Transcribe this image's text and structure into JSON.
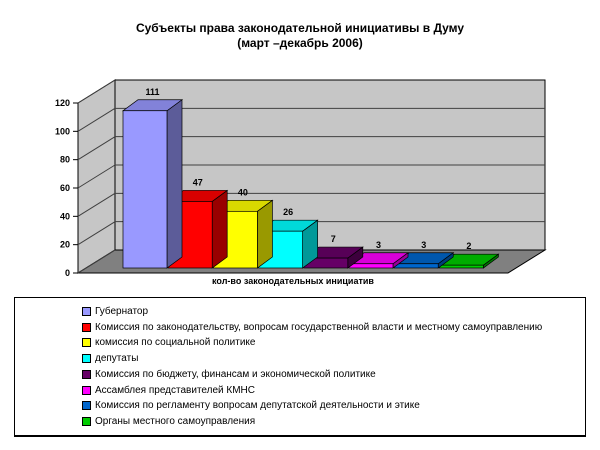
{
  "title": {
    "line1": "Субъекты права законодательной инициативы в Думу",
    "line2": "(март –декабрь 2006)"
  },
  "chart_data": {
    "type": "bar",
    "projection": "3d",
    "title": "Субъекты права законодательной инициативы в Думу (март –декабрь 2006)",
    "xlabel": "кол-во законодательных инициатив",
    "ylabel": "",
    "ylim": [
      0,
      120
    ],
    "y_ticks": [
      0,
      20,
      40,
      60,
      80,
      100,
      120
    ],
    "grid": true,
    "legend_position": "bottom",
    "wall_color": "#c6c6c6",
    "floor_color": "#808080",
    "categories": [
      "Губернатор",
      "Комиссия по законодательству, вопросам государственной власти и местному самоуправлению",
      "комиссия по социальной политике",
      "депутаты",
      "Комиссия по бюджету, финансам и экономической политике",
      "Ассамблея представителей КМНС",
      "Комиссия по регламенту вопросам депутатской деятельности и этике",
      "Органы местного самоуправления"
    ],
    "values": [
      111,
      47,
      40,
      26,
      7,
      3,
      3,
      2
    ],
    "colors": [
      "#9999ff",
      "#ff0000",
      "#ffff00",
      "#00ffff",
      "#660066",
      "#ff00ff",
      "#0066cc",
      "#00cc00"
    ]
  }
}
